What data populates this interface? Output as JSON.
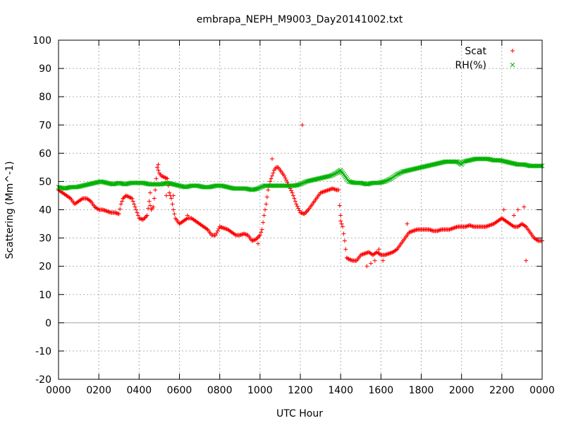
{
  "chart_data": {
    "type": "scatter",
    "title": "embrapa_NEPH_M9003_Day20141002.txt",
    "xlabel": "UTC Hour",
    "ylabel": "Scattering (Mm^-1)",
    "xlim": [
      0,
      24
    ],
    "ylim": [
      -20,
      100
    ],
    "x_ticks": [
      0,
      2,
      4,
      6,
      8,
      10,
      12,
      14,
      16,
      18,
      20,
      22,
      24
    ],
    "x_tick_labels": [
      "0000",
      "0200",
      "0400",
      "0600",
      "0800",
      "1000",
      "1200",
      "1400",
      "1600",
      "1800",
      "2000",
      "2200",
      "0000"
    ],
    "y_ticks": [
      -20,
      -10,
      0,
      10,
      20,
      30,
      40,
      50,
      60,
      70,
      80,
      90,
      100
    ],
    "y_tick_labels": [
      "-20",
      "-10",
      "0",
      "10",
      "20",
      "30",
      "40",
      "50",
      "60",
      "70",
      "80",
      "90",
      "100"
    ],
    "grid": true,
    "zero_line": true,
    "legend_position": "top-right",
    "series": [
      {
        "name": "Scat",
        "marker": "+",
        "color": "#ff0000",
        "points": [
          [
            0.0,
            47
          ],
          [
            0.2,
            46
          ],
          [
            0.4,
            45
          ],
          [
            0.6,
            44
          ],
          [
            0.8,
            42
          ],
          [
            1.0,
            43
          ],
          [
            1.2,
            44
          ],
          [
            1.4,
            44
          ],
          [
            1.6,
            43
          ],
          [
            1.8,
            41
          ],
          [
            2.0,
            40
          ],
          [
            2.2,
            40
          ],
          [
            2.4,
            39.5
          ],
          [
            2.6,
            39
          ],
          [
            2.8,
            39
          ],
          [
            3.0,
            38.5
          ],
          [
            3.1,
            42
          ],
          [
            3.2,
            44
          ],
          [
            3.35,
            45
          ],
          [
            3.5,
            44.5
          ],
          [
            3.65,
            44
          ],
          [
            3.8,
            41
          ],
          [
            4.0,
            37
          ],
          [
            4.2,
            36.5
          ],
          [
            4.4,
            38
          ],
          [
            4.5,
            43
          ],
          [
            4.6,
            40
          ],
          [
            4.7,
            41
          ],
          [
            4.8,
            47
          ],
          [
            4.9,
            55
          ],
          [
            5.0,
            53
          ],
          [
            5.1,
            52
          ],
          [
            5.25,
            51.5
          ],
          [
            5.4,
            51
          ],
          [
            5.5,
            46
          ],
          [
            5.6,
            44
          ],
          [
            5.7,
            40
          ],
          [
            5.8,
            37
          ],
          [
            6.0,
            35
          ],
          [
            6.2,
            36
          ],
          [
            6.4,
            37
          ],
          [
            6.6,
            37
          ],
          [
            6.8,
            36
          ],
          [
            7.0,
            35
          ],
          [
            7.2,
            34
          ],
          [
            7.4,
            33
          ],
          [
            7.6,
            31
          ],
          [
            7.8,
            31
          ],
          [
            8.0,
            34
          ],
          [
            8.2,
            33.5
          ],
          [
            8.4,
            33
          ],
          [
            8.6,
            32
          ],
          [
            8.8,
            31
          ],
          [
            9.0,
            31
          ],
          [
            9.2,
            31.5
          ],
          [
            9.4,
            31
          ],
          [
            9.6,
            29
          ],
          [
            9.8,
            29.5
          ],
          [
            10.0,
            31
          ],
          [
            10.1,
            33
          ],
          [
            10.2,
            38
          ],
          [
            10.3,
            42
          ],
          [
            10.4,
            47
          ],
          [
            10.5,
            50
          ],
          [
            10.6,
            52
          ],
          [
            10.7,
            54
          ],
          [
            10.8,
            55
          ],
          [
            10.9,
            55
          ],
          [
            11.0,
            54
          ],
          [
            11.2,
            52
          ],
          [
            11.4,
            49
          ],
          [
            11.6,
            46
          ],
          [
            11.8,
            42
          ],
          [
            12.0,
            39
          ],
          [
            12.2,
            38.5
          ],
          [
            12.4,
            40
          ],
          [
            12.6,
            42
          ],
          [
            12.8,
            44
          ],
          [
            13.0,
            46
          ],
          [
            13.2,
            46.5
          ],
          [
            13.4,
            47
          ],
          [
            13.6,
            47.5
          ],
          [
            13.8,
            47
          ],
          [
            13.9,
            47
          ],
          [
            14.0,
            36
          ],
          [
            14.1,
            34
          ],
          [
            14.2,
            29
          ],
          [
            14.3,
            23
          ],
          [
            14.4,
            22.5
          ],
          [
            14.6,
            22
          ],
          [
            14.8,
            22
          ],
          [
            15.0,
            24
          ],
          [
            15.2,
            24.5
          ],
          [
            15.4,
            25
          ],
          [
            15.6,
            24
          ],
          [
            15.8,
            25
          ],
          [
            16.0,
            24
          ],
          [
            16.2,
            24
          ],
          [
            16.4,
            24.5
          ],
          [
            16.6,
            25
          ],
          [
            16.8,
            26
          ],
          [
            17.0,
            28
          ],
          [
            17.2,
            30
          ],
          [
            17.4,
            32
          ],
          [
            17.6,
            32.5
          ],
          [
            17.8,
            33
          ],
          [
            18.0,
            33
          ],
          [
            18.2,
            33
          ],
          [
            18.4,
            33
          ],
          [
            18.6,
            32.5
          ],
          [
            18.8,
            32.5
          ],
          [
            19.0,
            33
          ],
          [
            19.2,
            33
          ],
          [
            19.4,
            33
          ],
          [
            19.6,
            33.5
          ],
          [
            19.8,
            34
          ],
          [
            20.0,
            34
          ],
          [
            20.2,
            34
          ],
          [
            20.4,
            34.5
          ],
          [
            20.6,
            34
          ],
          [
            20.8,
            34
          ],
          [
            21.0,
            34
          ],
          [
            21.2,
            34
          ],
          [
            21.4,
            34.5
          ],
          [
            21.6,
            35
          ],
          [
            21.8,
            36
          ],
          [
            22.0,
            37
          ],
          [
            22.2,
            36
          ],
          [
            22.4,
            35
          ],
          [
            22.6,
            34
          ],
          [
            22.8,
            34
          ],
          [
            23.0,
            35
          ],
          [
            23.2,
            34
          ],
          [
            23.4,
            32
          ],
          [
            23.6,
            30
          ],
          [
            23.8,
            29
          ],
          [
            24.0,
            29
          ],
          [
            12.1,
            70
          ],
          [
            10.6,
            58
          ],
          [
            4.95,
            56
          ],
          [
            4.55,
            46
          ],
          [
            5.35,
            45
          ],
          [
            5.7,
            45
          ],
          [
            6.4,
            38
          ],
          [
            15.9,
            26
          ],
          [
            16.1,
            22
          ],
          [
            15.3,
            20
          ],
          [
            15.5,
            21
          ],
          [
            15.7,
            22
          ],
          [
            22.1,
            40
          ],
          [
            22.6,
            38
          ],
          [
            22.8,
            40
          ],
          [
            23.1,
            41
          ],
          [
            23.2,
            22
          ],
          [
            9.9,
            28
          ],
          [
            14.0,
            38
          ],
          [
            17.3,
            35
          ]
        ]
      },
      {
        "name": "RH(%)",
        "marker": "x",
        "color": "#00b000",
        "points": [
          [
            0.0,
            48
          ],
          [
            0.3,
            47.5
          ],
          [
            0.6,
            48
          ],
          [
            0.9,
            48
          ],
          [
            1.2,
            48.5
          ],
          [
            1.5,
            49
          ],
          [
            1.8,
            49.5
          ],
          [
            2.1,
            50
          ],
          [
            2.4,
            49.5
          ],
          [
            2.7,
            49
          ],
          [
            3.0,
            49.5
          ],
          [
            3.3,
            49
          ],
          [
            3.6,
            49.5
          ],
          [
            3.9,
            49.5
          ],
          [
            4.2,
            49.5
          ],
          [
            4.5,
            49
          ],
          [
            4.8,
            49
          ],
          [
            5.1,
            49
          ],
          [
            5.4,
            49.5
          ],
          [
            5.7,
            49
          ],
          [
            6.0,
            48.5
          ],
          [
            6.3,
            48
          ],
          [
            6.6,
            48.5
          ],
          [
            6.9,
            48.5
          ],
          [
            7.2,
            48
          ],
          [
            7.5,
            48
          ],
          [
            7.8,
            48.5
          ],
          [
            8.1,
            48.5
          ],
          [
            8.4,
            48
          ],
          [
            8.7,
            47.5
          ],
          [
            9.0,
            47.5
          ],
          [
            9.3,
            47.5
          ],
          [
            9.6,
            47
          ],
          [
            9.9,
            47.5
          ],
          [
            10.2,
            48.5
          ],
          [
            10.5,
            48.5
          ],
          [
            10.8,
            48.5
          ],
          [
            11.1,
            48.5
          ],
          [
            11.4,
            48.5
          ],
          [
            11.7,
            48.5
          ],
          [
            12.0,
            49
          ],
          [
            12.3,
            50
          ],
          [
            12.6,
            50.5
          ],
          [
            12.9,
            51
          ],
          [
            13.2,
            51.5
          ],
          [
            13.5,
            52
          ],
          [
            13.8,
            53
          ],
          [
            14.0,
            54
          ],
          [
            14.2,
            52
          ],
          [
            14.4,
            50
          ],
          [
            14.7,
            49.5
          ],
          [
            15.0,
            49.5
          ],
          [
            15.3,
            49
          ],
          [
            15.6,
            49.5
          ],
          [
            15.9,
            49.5
          ],
          [
            16.2,
            50
          ],
          [
            16.5,
            51
          ],
          [
            16.8,
            52.5
          ],
          [
            17.1,
            53.5
          ],
          [
            17.4,
            54
          ],
          [
            17.7,
            54.5
          ],
          [
            18.0,
            55
          ],
          [
            18.3,
            55.5
          ],
          [
            18.6,
            56
          ],
          [
            18.9,
            56.5
          ],
          [
            19.2,
            57
          ],
          [
            19.5,
            57
          ],
          [
            19.8,
            57
          ],
          [
            20.0,
            56
          ],
          [
            20.1,
            57
          ],
          [
            20.4,
            57.5
          ],
          [
            20.7,
            58
          ],
          [
            21.0,
            58
          ],
          [
            21.3,
            58
          ],
          [
            21.6,
            57.5
          ],
          [
            21.9,
            57.5
          ],
          [
            22.2,
            57
          ],
          [
            22.5,
            56.5
          ],
          [
            22.8,
            56
          ],
          [
            23.1,
            56
          ],
          [
            23.4,
            55.5
          ],
          [
            23.7,
            55.5
          ],
          [
            24.0,
            55.5
          ]
        ]
      }
    ]
  }
}
